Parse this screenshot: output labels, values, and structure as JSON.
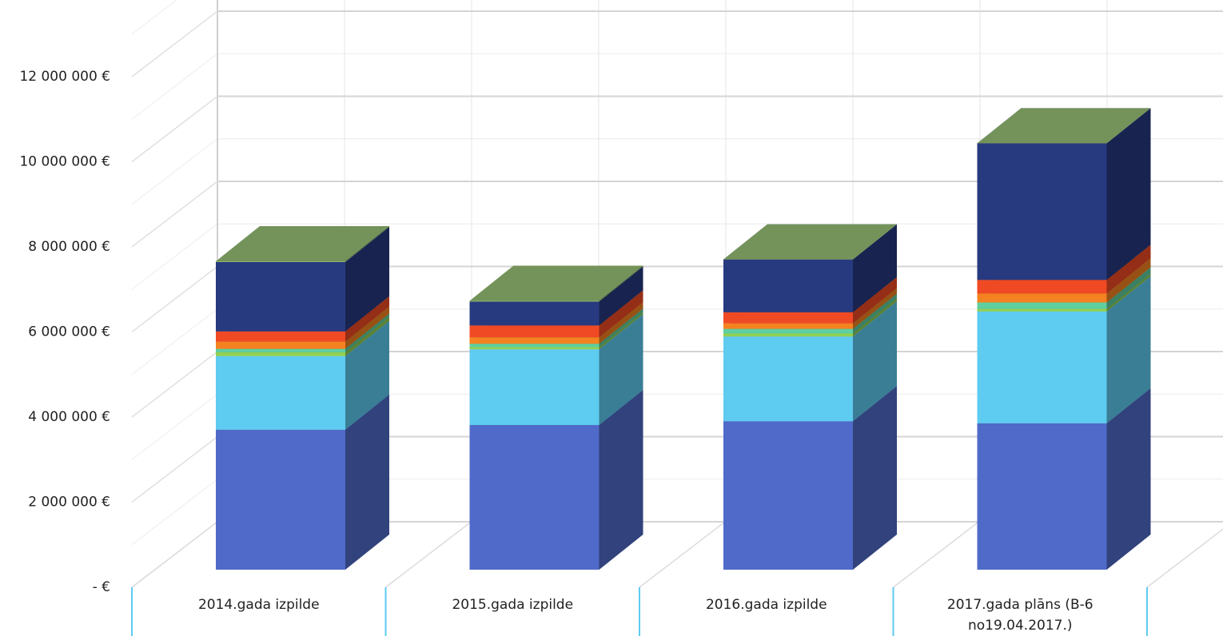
{
  "chart_data": {
    "type": "bar3d_stacked",
    "categories": [
      "2014.gada izpilde",
      "2015.gada izpilde",
      "2016.gada izpilde",
      "2017.gada plāns (B-6 no19.04.2017.)"
    ],
    "series": [
      {
        "color": "#4f6ac8",
        "values": [
          3290000,
          3400000,
          3490000,
          3440000
        ]
      },
      {
        "color": "#5ecbf0",
        "values": [
          1730000,
          1780000,
          1990000,
          2630000
        ]
      },
      {
        "color": "#92d050",
        "values": [
          90000,
          50000,
          70000,
          60000
        ]
      },
      {
        "color": "#5fcfa0",
        "values": [
          80000,
          80000,
          110000,
          150000
        ]
      },
      {
        "color": "#f58220",
        "values": [
          170000,
          150000,
          130000,
          210000
        ]
      },
      {
        "color": "#f04a24",
        "values": [
          240000,
          280000,
          260000,
          320000
        ]
      },
      {
        "color": "#273a80",
        "values": [
          1630000,
          560000,
          1240000,
          3210000
        ]
      },
      {
        "color": "#8db36e",
        "values": [
          20000,
          20000,
          0,
          0
        ]
      }
    ],
    "ylim": [
      0,
      12000000
    ],
    "yticks": [
      {
        "value": 0,
        "label": "-  €"
      },
      {
        "value": 2000000,
        "label": "2 000 000 €"
      },
      {
        "value": 4000000,
        "label": "4 000 000 €"
      },
      {
        "value": 6000000,
        "label": "6 000 000 €"
      },
      {
        "value": 8000000,
        "label": "8 000 000 €"
      },
      {
        "value": 10000000,
        "label": "10 000 000 €"
      },
      {
        "value": 12000000,
        "label": "12 000 000 €"
      }
    ],
    "grid": true
  }
}
